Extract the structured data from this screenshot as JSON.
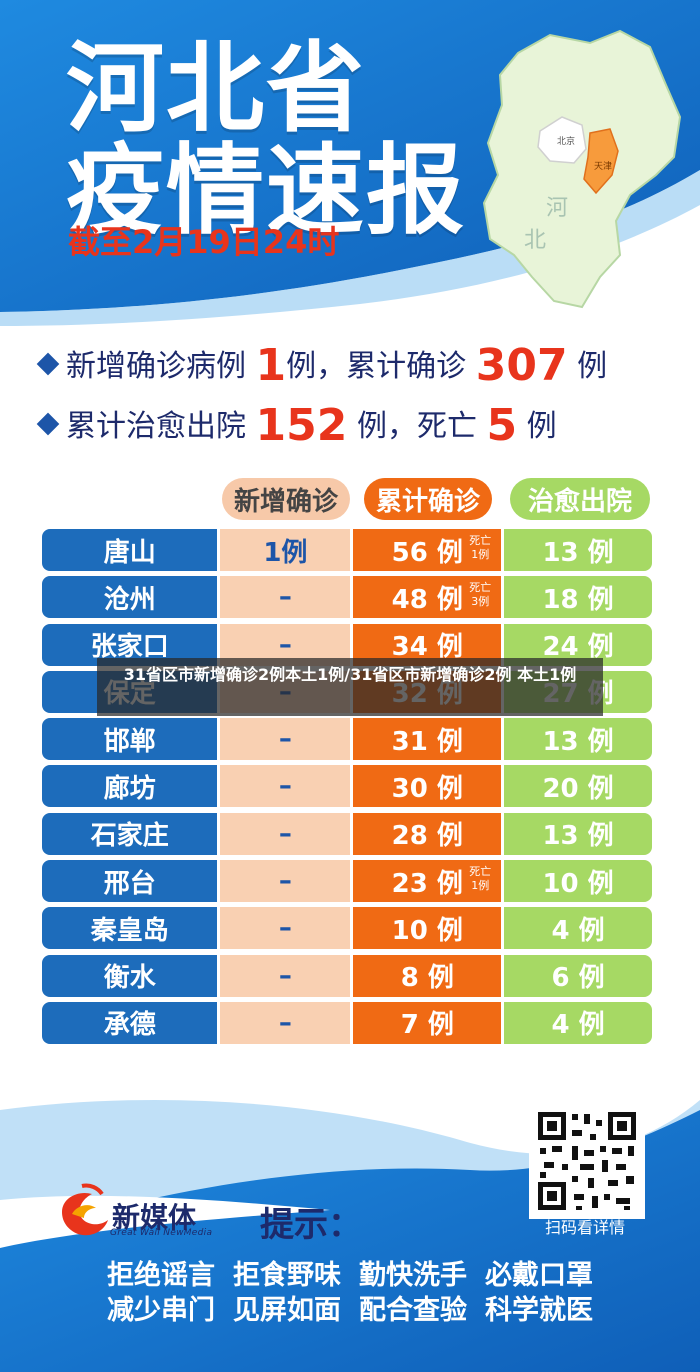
{
  "header": {
    "title_line1": "河北省",
    "title_line2": "疫情速报",
    "cutoff": "截至2月19日24时"
  },
  "map": {
    "beijing": "北京",
    "tianjin": "天津",
    "hebei_1": "河",
    "hebei_2": "北"
  },
  "summary": {
    "line1": {
      "label": "新增确诊病例",
      "value": "1",
      "unit": "例，",
      "label2": "累计确诊",
      "value2": "307",
      "unit2": "例"
    },
    "line2": {
      "label": "累计治愈出院",
      "value": "152",
      "unit": "例，",
      "label2": "死亡",
      "value2": "5",
      "unit2": "例"
    }
  },
  "columns": {
    "new": "新增确诊",
    "total": "累计确诊",
    "cured": "治愈出院"
  },
  "rows": [
    {
      "city": "唐山",
      "new": "1例",
      "total": "56 例",
      "death": [
        "死亡",
        "1例"
      ],
      "cured": "13 例"
    },
    {
      "city": "沧州",
      "new": "–",
      "total": "48 例",
      "death": [
        "死亡",
        "3例"
      ],
      "cured": "18 例"
    },
    {
      "city": "张家口",
      "new": "–",
      "total": "34 例",
      "death": null,
      "cured": "24 例"
    },
    {
      "city": "保定",
      "new": "–",
      "total": "32 例",
      "death": null,
      "cured": "27 例"
    },
    {
      "city": "邯郸",
      "new": "–",
      "total": "31 例",
      "death": null,
      "cured": "13 例"
    },
    {
      "city": "廊坊",
      "new": "–",
      "total": "30 例",
      "death": null,
      "cured": "20 例"
    },
    {
      "city": "石家庄",
      "new": "–",
      "total": "28 例",
      "death": null,
      "cured": "13 例"
    },
    {
      "city": "邢台",
      "new": "–",
      "total": "23 例",
      "death": [
        "死亡",
        "1例"
      ],
      "cured": "10 例"
    },
    {
      "city": "秦皇岛",
      "new": "–",
      "total": "10 例",
      "death": null,
      "cured": "4 例"
    },
    {
      "city": "衡水",
      "new": "–",
      "total": "8 例",
      "death": null,
      "cured": "6 例"
    },
    {
      "city": "承德",
      "new": "–",
      "total": "7 例",
      "death": null,
      "cured": "4 例"
    }
  ],
  "overlay": {
    "text": "31省区市新增确诊2例本土1例/31省区市新增确诊2例 本土1例"
  },
  "footer": {
    "logo_name": "新媒体",
    "logo_sub": "Great Wall NewMedia",
    "tips_label": "提示：",
    "qr_label": "扫码看详情",
    "tips_row1": [
      "拒绝谣言",
      "拒食野味",
      "勤快洗手",
      "必戴口罩"
    ],
    "tips_row2": [
      "减少串门",
      "见屏如面",
      "配合查验",
      "科学就医"
    ]
  },
  "colors": {
    "brand_blue": "#1d6cbb",
    "accent_red": "#e8341c",
    "orange": "#f06a14",
    "green": "#a6d964",
    "peach": "#f9d0b2"
  }
}
